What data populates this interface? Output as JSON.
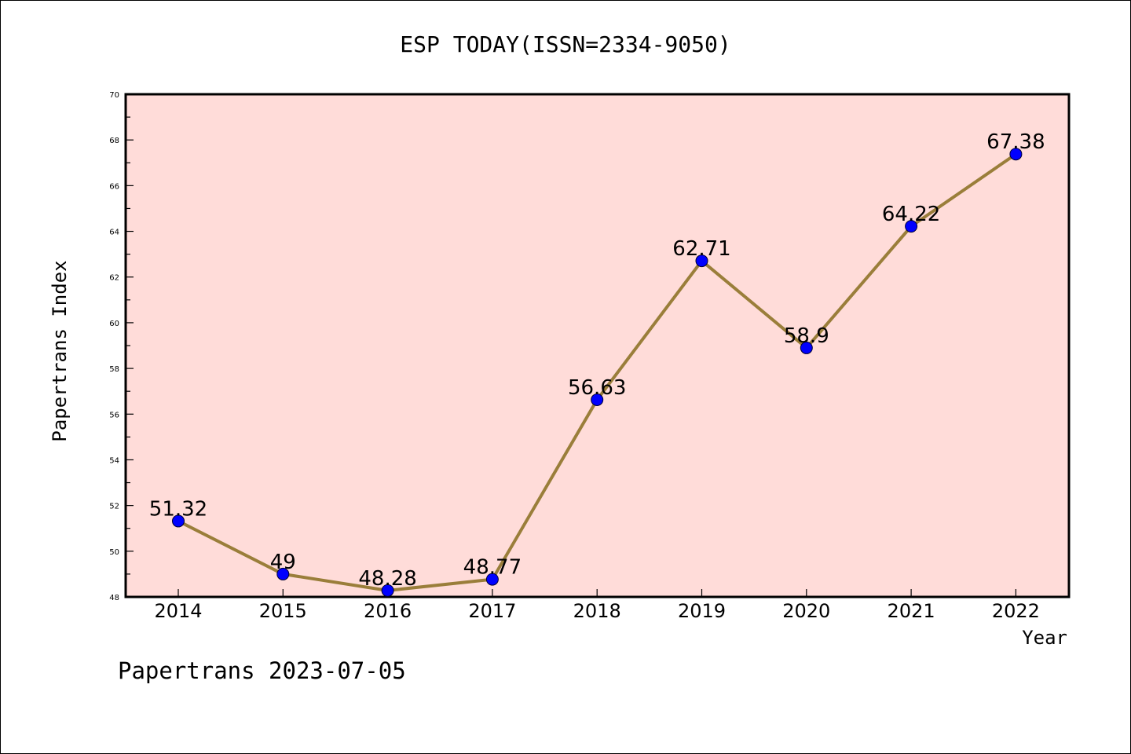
{
  "chart_data": {
    "type": "line",
    "title": "ESP TODAY(ISSN=2334-9050)",
    "xlabel": "Year",
    "ylabel": "Papertrans Index",
    "categories": [
      "2014",
      "2015",
      "2016",
      "2017",
      "2018",
      "2019",
      "2020",
      "2021",
      "2022"
    ],
    "series": [
      {
        "values": [
          51.32,
          49,
          48.28,
          48.77,
          56.63,
          62.71,
          58.9,
          64.22,
          67.38
        ],
        "labels": [
          "51.32",
          "49",
          "48.28",
          "48.77",
          "56.63",
          "62.71",
          "58.9",
          "64.22",
          "67.38"
        ]
      }
    ],
    "ylim": [
      48,
      70
    ],
    "yticks": [
      "48",
      "50",
      "52",
      "54",
      "56",
      "58",
      "60",
      "62",
      "64",
      "66",
      "68",
      "70"
    ],
    "grid": false,
    "colors": {
      "plot_background": "#ffdcd9",
      "line": "#9a7e3a",
      "marker": "#0000ff"
    }
  },
  "footer": "Papertrans 2023-07-05"
}
